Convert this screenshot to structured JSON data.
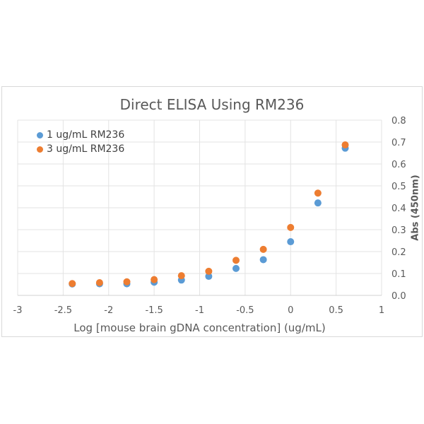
{
  "chart_data": {
    "type": "scatter",
    "title": "Direct ELISA Using RM236",
    "xlabel": "Log [mouse brain gDNA concentration] (ug/mL)",
    "ylabel": "Abs (450nm)",
    "xlim": [
      -3,
      1
    ],
    "ylim": [
      0,
      0.8
    ],
    "x_ticks": [
      "-3",
      "-2.5",
      "-2",
      "-1.5",
      "-1",
      "-0.5",
      "0",
      "0.5",
      "1"
    ],
    "y_ticks": [
      "0.0",
      "0.1",
      "0.2",
      "0.3",
      "0.4",
      "0.5",
      "0.6",
      "0.7",
      "0.8"
    ],
    "y_axis_position": "right",
    "grid": true,
    "legend_position": "top-left",
    "x": [
      -2.4,
      -2.1,
      -1.8,
      -1.5,
      -1.2,
      -0.9,
      -0.6,
      -0.3,
      0.0,
      0.3,
      0.6
    ],
    "series": [
      {
        "name": "1 ug/mL RM236",
        "color": "#5B9BD5",
        "values": [
          0.052,
          0.053,
          0.053,
          0.06,
          0.07,
          0.087,
          0.123,
          0.163,
          0.245,
          0.422,
          0.672
        ]
      },
      {
        "name": "3 ug/mL RM236",
        "color": "#ED7D31",
        "values": [
          0.054,
          0.058,
          0.062,
          0.072,
          0.09,
          0.11,
          0.16,
          0.21,
          0.31,
          0.467,
          0.687
        ]
      }
    ]
  }
}
